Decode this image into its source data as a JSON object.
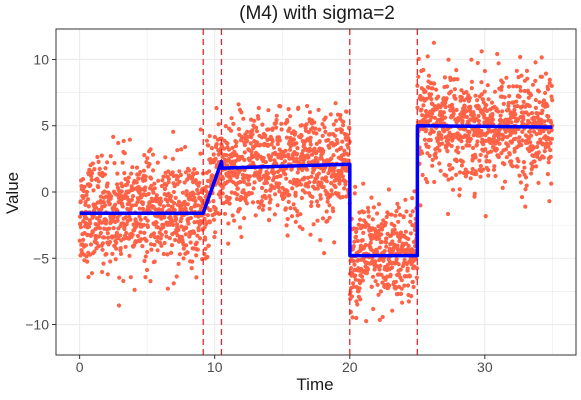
{
  "chart_data": {
    "type": "scatter",
    "title": "(M4) with sigma=2",
    "xlabel": "Time",
    "ylabel": "Value",
    "xlim": [
      -1.75,
      36.75
    ],
    "ylim": [
      -12.3,
      12.3
    ],
    "x_ticks": [
      0,
      10,
      20,
      30
    ],
    "y_ticks": [
      -10,
      -5,
      0,
      5,
      10
    ],
    "grid": true,
    "legend": "none",
    "colors": {
      "points": "#ff6347",
      "fit_line": "#0000ff",
      "changepoint_lines": "#e8262a",
      "grid": "#ebebeb",
      "panel_border": "#333333"
    },
    "scatter_series": {
      "x_range": [
        0,
        35
      ],
      "n_points": 2800,
      "noise_sd": 2,
      "note_mean": "points scatter around the fitted mean curve"
    },
    "fit_line": {
      "x": [
        0,
        9.15,
        10.5,
        10.55,
        20,
        20.01,
        25,
        25.01,
        35
      ],
      "y": [
        -1.6,
        -1.6,
        2.3,
        1.8,
        2.1,
        -4.8,
        -4.8,
        5.0,
        4.9
      ]
    },
    "changepoints": [
      9.15,
      10.5,
      20,
      25
    ]
  }
}
